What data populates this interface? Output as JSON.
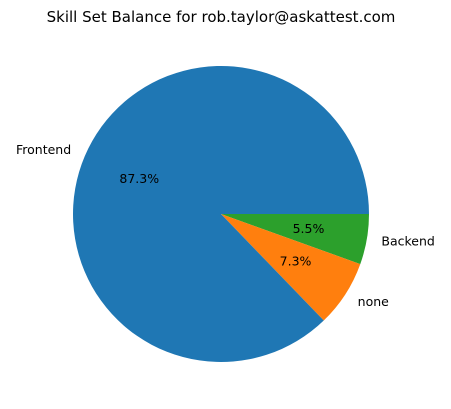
{
  "chart_data": {
    "type": "pie",
    "title": "Skill Set Balance for rob.taylor@askattest.com",
    "slices": [
      {
        "label": "Backend",
        "value": 5.5,
        "pct_label": "5.5%",
        "color": "#2ca02c"
      },
      {
        "label": "none",
        "value": 7.3,
        "pct_label": "7.3%",
        "color": "#ff7f0e"
      },
      {
        "label": "Frontend",
        "value": 87.3,
        "pct_label": "87.3%",
        "color": "#1f77b4"
      }
    ],
    "start_angle_deg": 0,
    "direction": "clockwise",
    "legend": "none"
  }
}
